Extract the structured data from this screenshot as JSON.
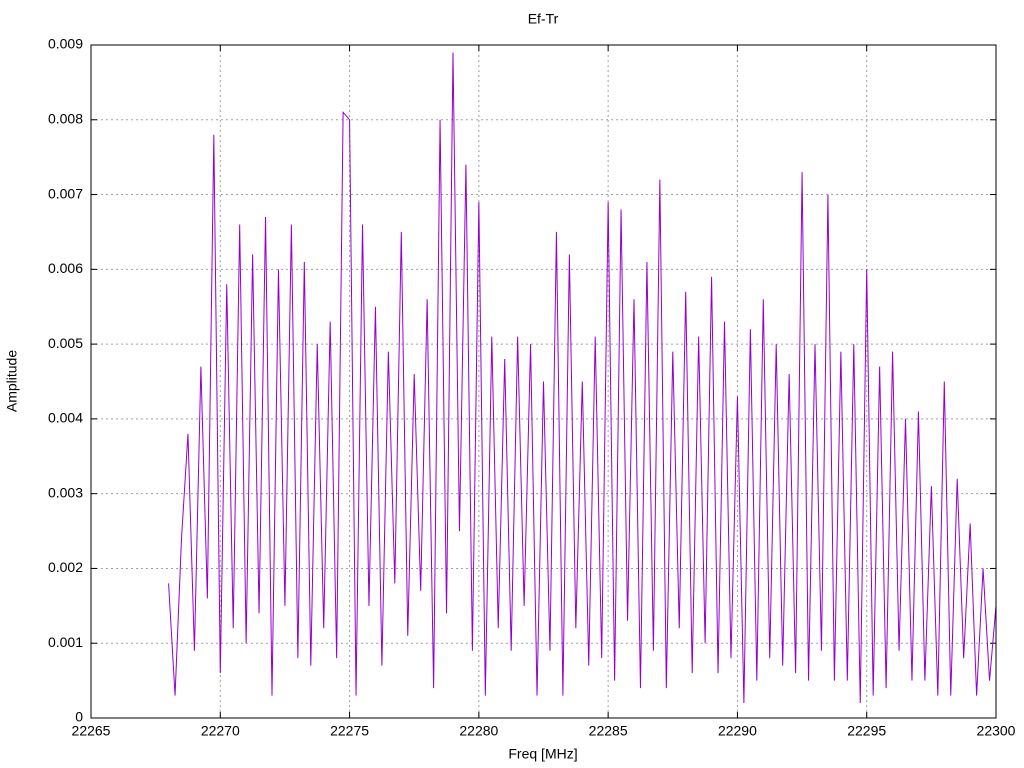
{
  "chart_data": {
    "type": "line",
    "title": "Ef-Tr",
    "xlabel": "Freq [MHz]",
    "ylabel": "Amplitude",
    "xlim": [
      22265,
      22300
    ],
    "xticks": [
      22265,
      22270,
      22275,
      22280,
      22285,
      22290,
      22295,
      22300
    ],
    "ylim": [
      0,
      0.009
    ],
    "yticks": [
      0,
      0.001,
      0.002,
      0.003,
      0.004,
      0.005,
      0.006,
      0.007,
      0.008,
      0.009
    ],
    "grid": true,
    "x": [
      22268,
      22268.25,
      22268.5,
      22268.75,
      22269,
      22269.25,
      22269.5,
      22269.75,
      22270,
      22270.25,
      22270.5,
      22270.75,
      22271,
      22271.25,
      22271.5,
      22271.75,
      22272,
      22272.25,
      22272.5,
      22272.75,
      22273,
      22273.25,
      22273.5,
      22273.75,
      22274,
      22274.25,
      22274.5,
      22274.75,
      22275,
      22275.25,
      22275.5,
      22275.75,
      22276,
      22276.25,
      22276.5,
      22276.75,
      22277,
      22277.25,
      22277.5,
      22277.75,
      22278,
      22278.25,
      22278.5,
      22278.75,
      22279,
      22279.25,
      22279.5,
      22279.75,
      22280,
      22280.25,
      22280.5,
      22280.75,
      22281,
      22281.25,
      22281.5,
      22281.75,
      22282,
      22282.25,
      22282.5,
      22282.75,
      22283,
      22283.25,
      22283.5,
      22283.75,
      22284,
      22284.25,
      22284.5,
      22284.75,
      22285,
      22285.25,
      22285.5,
      22285.75,
      22286,
      22286.25,
      22286.5,
      22286.75,
      22287,
      22287.25,
      22287.5,
      22287.75,
      22288,
      22288.25,
      22288.5,
      22288.75,
      22289,
      22289.25,
      22289.5,
      22289.75,
      22290,
      22290.25,
      22290.5,
      22290.75,
      22291,
      22291.25,
      22291.5,
      22291.75,
      22292,
      22292.25,
      22292.5,
      22292.75,
      22293,
      22293.25,
      22293.5,
      22293.75,
      22294,
      22294.25,
      22294.5,
      22294.75,
      22295,
      22295.25,
      22295.5,
      22295.75,
      22296,
      22296.25,
      22296.5,
      22296.75,
      22297,
      22297.25,
      22297.5,
      22297.75,
      22298,
      22298.25,
      22298.5,
      22298.75,
      22299,
      22299.25,
      22299.5,
      22299.75,
      22300
    ],
    "series": [
      {
        "name": "Ef-Tr",
        "color": "#9400d3",
        "values": [
          0.0018,
          0.0003,
          0.0024,
          0.0038,
          0.0009,
          0.0047,
          0.0016,
          0.0078,
          0.0006,
          0.0058,
          0.0012,
          0.0066,
          0.001,
          0.0062,
          0.0014,
          0.0067,
          0.0003,
          0.006,
          0.0015,
          0.0066,
          0.0008,
          0.0061,
          0.0007,
          0.005,
          0.0012,
          0.0053,
          0.0008,
          0.0081,
          0.008,
          0.0003,
          0.0066,
          0.0015,
          0.0055,
          0.0007,
          0.0049,
          0.0018,
          0.0065,
          0.0011,
          0.0046,
          0.0017,
          0.0056,
          0.0004,
          0.008,
          0.0014,
          0.0089,
          0.0025,
          0.0074,
          0.0009,
          0.0069,
          0.0003,
          0.0051,
          0.0012,
          0.0048,
          0.0009,
          0.0051,
          0.0015,
          0.005,
          0.0003,
          0.0045,
          0.0009,
          0.0065,
          0.0003,
          0.0062,
          0.0012,
          0.0045,
          0.0007,
          0.0051,
          0.0008,
          0.0069,
          0.0005,
          0.0068,
          0.0013,
          0.0056,
          0.0004,
          0.0061,
          0.0009,
          0.0072,
          0.0004,
          0.0049,
          0.0012,
          0.0057,
          0.0006,
          0.0051,
          0.001,
          0.0059,
          0.0006,
          0.0053,
          0.0008,
          0.0043,
          0.0002,
          0.0052,
          0.0005,
          0.0056,
          0.0008,
          0.005,
          0.0007,
          0.0046,
          0.0006,
          0.0073,
          0.0005,
          0.005,
          0.0009,
          0.007,
          0.0005,
          0.0049,
          0.0005,
          0.005,
          0.0002,
          0.006,
          0.0003,
          0.0047,
          0.0004,
          0.0049,
          0.0009,
          0.004,
          0.0005,
          0.0041,
          0.0005,
          0.0031,
          0.0003,
          0.0045,
          0.0003,
          0.0032,
          0.0008,
          0.0026,
          0.0003,
          0.002,
          0.0005,
          0.0015
        ]
      }
    ]
  }
}
